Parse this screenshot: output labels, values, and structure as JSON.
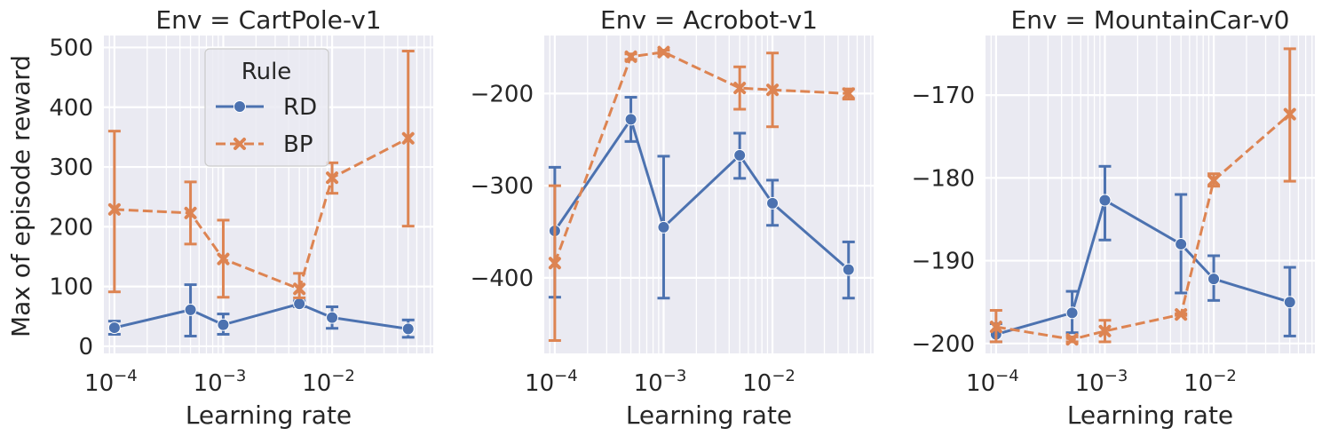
{
  "figure": {
    "ylabel": "Max of episode reward",
    "xlabel": "Learning rate",
    "legend": {
      "title": "Rule",
      "location": "upper-left of first panel"
    }
  },
  "chart_data": [
    {
      "type": "line",
      "title": "Env = CartPole-v1",
      "xscale": "log",
      "xlabel": "Learning rate",
      "ylabel": "Max of episode reward",
      "xlim": [
        8e-05,
        0.085
      ],
      "ylim": [
        -12,
        520
      ],
      "yticks": [
        0,
        100,
        200,
        300,
        400,
        500
      ],
      "ytick_labels": [
        "0",
        "100",
        "200",
        "300",
        "400",
        "500"
      ],
      "x": [
        0.0001,
        0.0005,
        0.001,
        0.005,
        0.01,
        0.05
      ],
      "series": [
        {
          "name": "RD",
          "color": "#4c72b0",
          "dash": "solid",
          "marker": "circle",
          "values": [
            31,
            61,
            36,
            71,
            48,
            29
          ],
          "err_low": [
            20,
            17,
            20,
            66,
            30,
            15
          ],
          "err_high": [
            42,
            103,
            54,
            76,
            66,
            44
          ]
        },
        {
          "name": "BP",
          "color": "#dd8452",
          "dash": "dashed",
          "marker": "x",
          "values": [
            229,
            223,
            146,
            96,
            282,
            348
          ],
          "err_low": [
            91,
            171,
            82,
            81,
            256,
            201
          ],
          "err_high": [
            360,
            275,
            211,
            122,
            307,
            494
          ]
        }
      ],
      "grid": true,
      "legend": true
    },
    {
      "type": "line",
      "title": "Env = Acrobot-v1",
      "xscale": "log",
      "xlabel": "Learning rate",
      "ylim": [
        -482,
        -137
      ],
      "yticks": [
        -400,
        -300,
        -200
      ],
      "ytick_labels": [
        "−400",
        "−300",
        "−200"
      ],
      "x": [
        0.0001,
        0.0005,
        0.001,
        0.005,
        0.01,
        0.05
      ],
      "series": [
        {
          "name": "RD",
          "color": "#4c72b0",
          "dash": "solid",
          "marker": "circle",
          "values": [
            -349,
            -228,
            -345,
            -267,
            -319,
            -391
          ],
          "err_low": [
            -421,
            -252,
            -422,
            -292,
            -343,
            -422
          ],
          "err_high": [
            -280,
            -204,
            -268,
            -243,
            -294,
            -361
          ]
        },
        {
          "name": "BP",
          "color": "#dd8452",
          "dash": "dashed",
          "marker": "x",
          "values": [
            -384,
            -160,
            -155,
            -194,
            -196,
            -200
          ],
          "err_low": [
            -468,
            -163,
            -157,
            -217,
            -236,
            -206
          ],
          "err_high": [
            -300,
            -157,
            -153,
            -171,
            -156,
            -195
          ]
        }
      ],
      "grid": true,
      "legend": false
    },
    {
      "type": "line",
      "title": "Env = MountainCar-v0",
      "xscale": "log",
      "xlabel": "Learning rate",
      "ylim": [
        -201.2,
        -162.8
      ],
      "yticks": [
        -200,
        -190,
        -180,
        -170
      ],
      "ytick_labels": [
        "−200",
        "−190",
        "−180",
        "−170"
      ],
      "x": [
        0.0001,
        0.0005,
        0.001,
        0.005,
        0.01,
        0.05
      ],
      "series": [
        {
          "name": "RD",
          "color": "#4c72b0",
          "dash": "solid",
          "marker": "circle",
          "values": [
            -198.9,
            -196.3,
            -182.7,
            -188.0,
            -192.2,
            -195.0
          ],
          "err_low": [
            -199.8,
            -198.7,
            -187.5,
            -193.9,
            -194.8,
            -199.1
          ],
          "err_high": [
            -197.6,
            -193.7,
            -178.6,
            -182.0,
            -189.4,
            -190.8
          ]
        },
        {
          "name": "BP",
          "color": "#dd8452",
          "dash": "dashed",
          "marker": "x",
          "values": [
            -198.0,
            -199.5,
            -198.5,
            -196.5,
            -180.3,
            -172.3
          ],
          "err_low": [
            -199.8,
            -199.8,
            -199.8,
            -196.6,
            -181.0,
            -180.4
          ],
          "err_high": [
            -196.0,
            -199.2,
            -197.2,
            -196.4,
            -179.5,
            -164.4
          ]
        }
      ],
      "grid": true,
      "legend": false
    }
  ]
}
